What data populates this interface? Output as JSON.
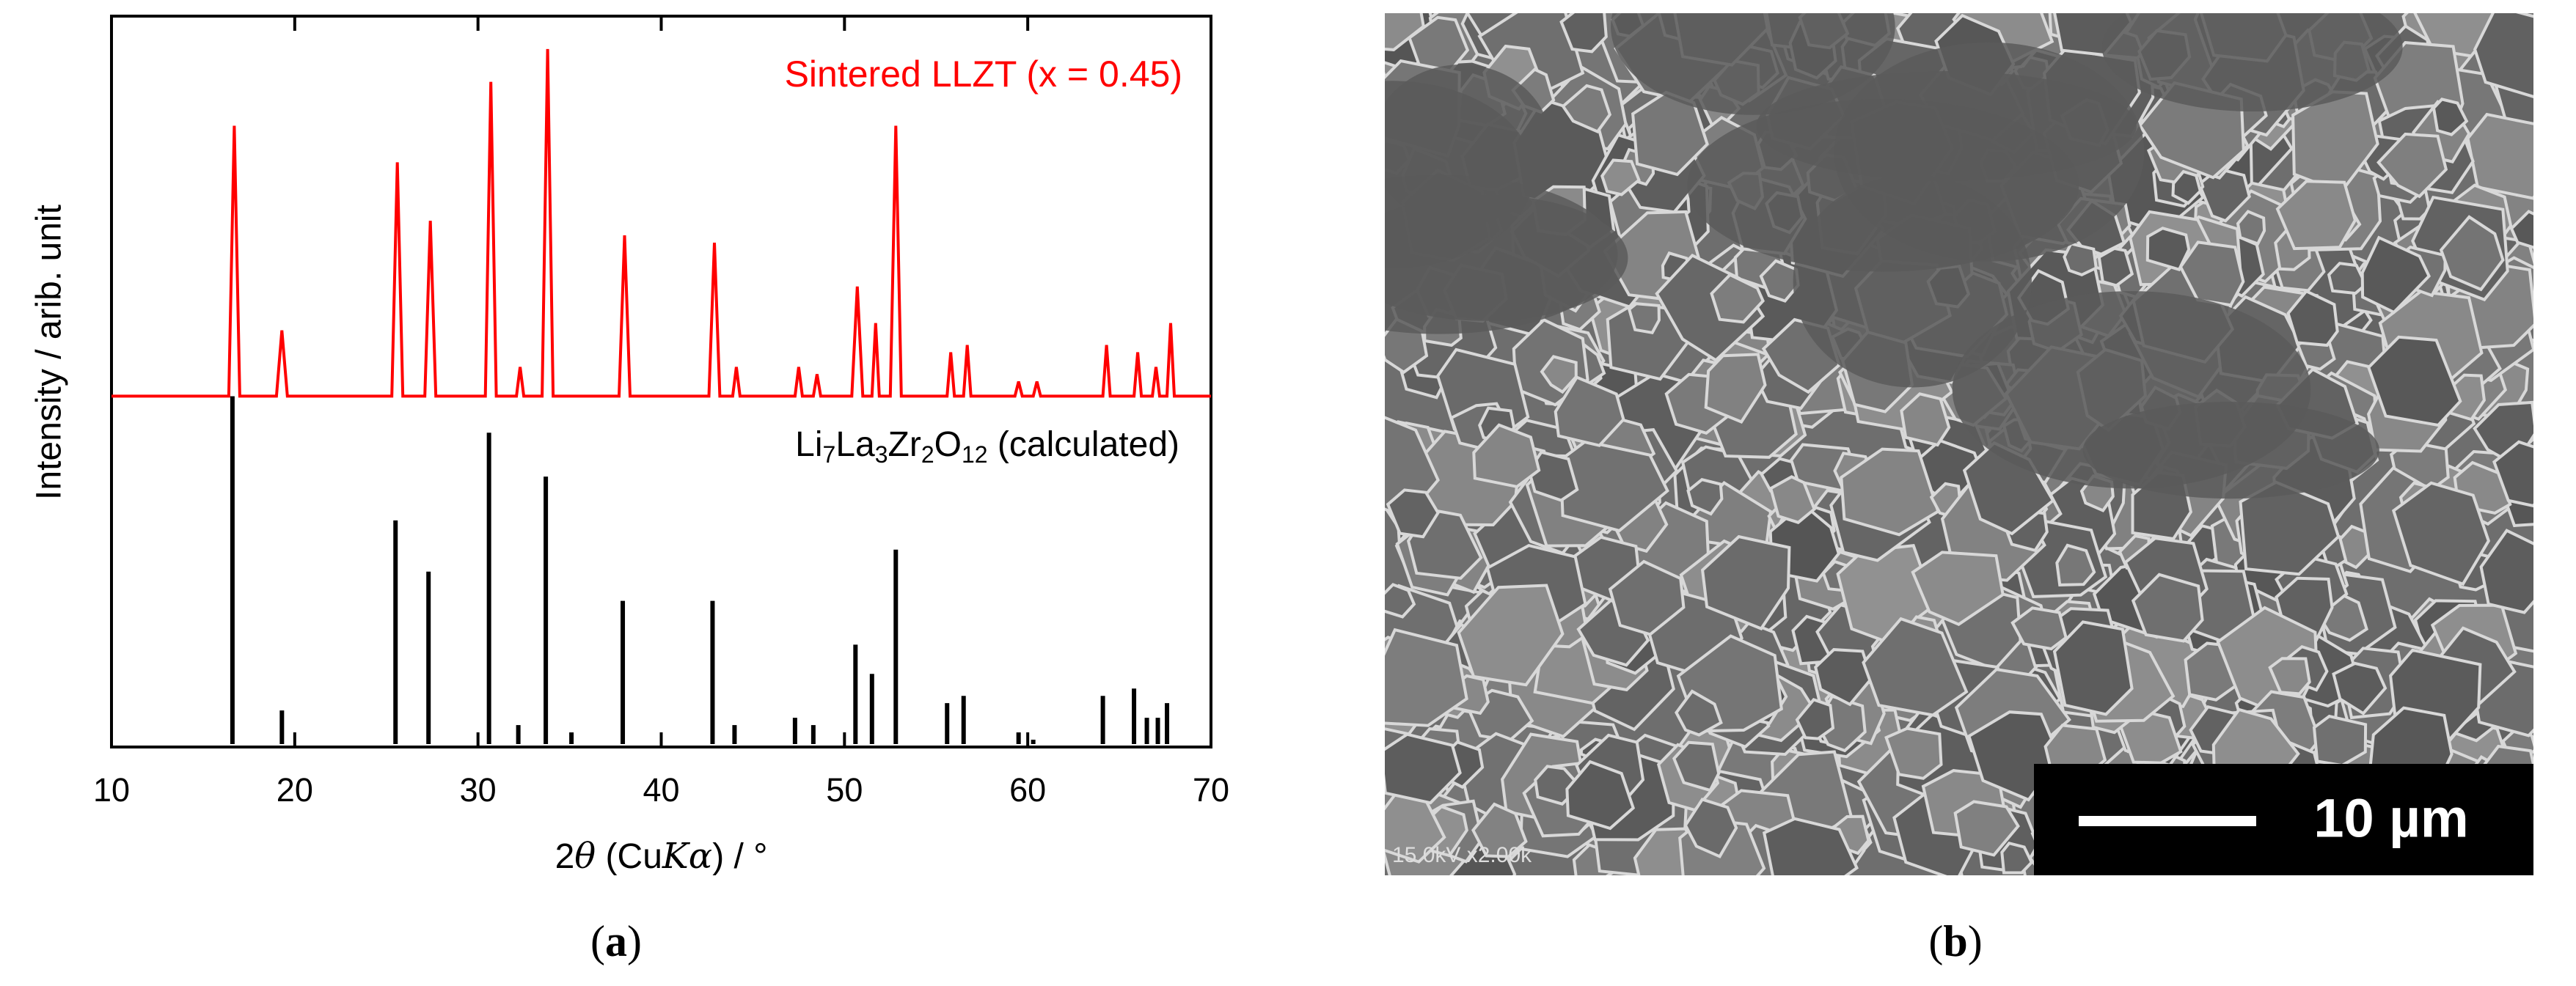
{
  "chart_data": {
    "type": "line",
    "xlabel": "2θ (CuKα) / °",
    "ylabel": "Intensity / arib. unit",
    "xlim": [
      10,
      70
    ],
    "xticks": [
      10,
      20,
      30,
      40,
      50,
      60,
      70
    ],
    "ylim": [
      0,
      100
    ],
    "series": [
      {
        "name": "Sintered LLZT (x = 0.45)",
        "color": "#ff0000",
        "type": "line",
        "x": [
          10,
          16.4,
          16.7,
          17.0,
          19.0,
          19.3,
          19.6,
          25.3,
          25.6,
          25.9,
          27.1,
          27.4,
          27.7,
          30.4,
          30.7,
          31.0,
          32.1,
          32.3,
          32.5,
          33.5,
          33.8,
          34.1,
          37.7,
          38.0,
          38.3,
          42.6,
          42.9,
          43.2,
          43.9,
          44.1,
          44.3,
          47.3,
          47.5,
          47.7,
          48.3,
          48.5,
          48.7,
          50.4,
          50.7,
          51.0,
          51.5,
          51.7,
          51.9,
          52.5,
          52.8,
          53.1,
          55.6,
          55.8,
          56.0,
          56.5,
          56.7,
          56.9,
          59.3,
          59.5,
          59.7,
          60.3,
          60.5,
          60.7,
          64.1,
          64.3,
          64.5,
          65.8,
          66.0,
          66.2,
          66.8,
          67.0,
          67.2,
          67.6,
          67.8,
          68.0,
          70
        ],
        "values": [
          48,
          48,
          85,
          48,
          48,
          57,
          48,
          48,
          80,
          48,
          48,
          72,
          48,
          48,
          91,
          48,
          48,
          52,
          48,
          48,
          95.5,
          48,
          48,
          70,
          48,
          48,
          69,
          48,
          48,
          52,
          48,
          48,
          52,
          48,
          48,
          51,
          48,
          48,
          63,
          48,
          48,
          58,
          48,
          48,
          85,
          48,
          48,
          54,
          48,
          48,
          55,
          48,
          48,
          50,
          48,
          48,
          50,
          48,
          48,
          55,
          48,
          48,
          54,
          48,
          48,
          52,
          48,
          48,
          58,
          48,
          48
        ]
      },
      {
        "name": "Li7La3Zr2O12 (calculated)",
        "color": "#000000",
        "type": "stem",
        "x": [
          16.6,
          19.3,
          25.5,
          27.3,
          30.6,
          32.2,
          33.7,
          35.1,
          37.9,
          42.8,
          44.0,
          47.3,
          48.3,
          50.6,
          51.5,
          52.8,
          55.6,
          56.5,
          59.5,
          60.3,
          64.1,
          65.8,
          66.5,
          67.1,
          67.6
        ],
        "values": [
          48,
          5,
          31,
          24,
          43,
          3,
          37,
          2,
          20,
          20,
          3,
          4,
          3,
          14,
          10,
          27,
          6,
          7,
          2,
          1,
          7,
          8,
          4,
          4,
          6
        ]
      }
    ]
  },
  "panels": {
    "a": "(a)",
    "b": "(b)"
  },
  "sem": {
    "scale_bar": "10 µm",
    "info": "15.0kV x2.00k"
  }
}
